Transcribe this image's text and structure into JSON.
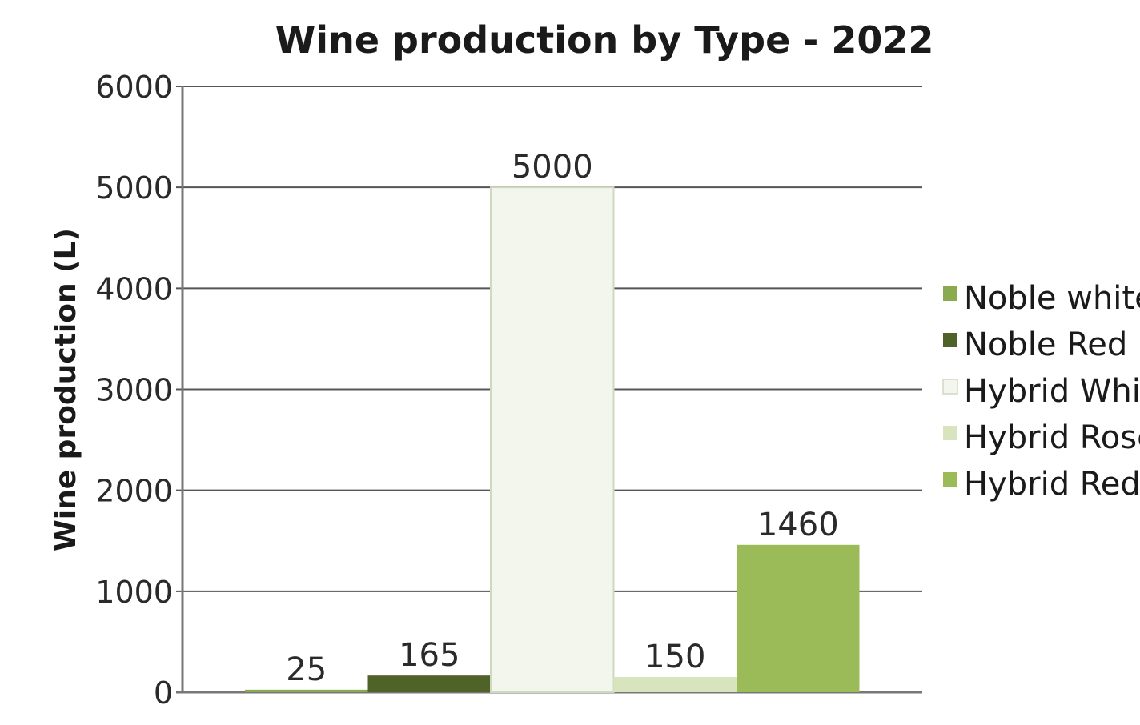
{
  "chart_data": {
    "type": "bar",
    "title": "Wine production by Type - 2022",
    "xlabel": "",
    "ylabel": "Wine production (L)",
    "ylim": [
      0,
      6000
    ],
    "yticks": [
      0,
      1000,
      2000,
      3000,
      4000,
      5000,
      6000
    ],
    "grid": true,
    "legend_position": "right",
    "categories": [
      "Noble white",
      "Noble Red",
      "Hybrid White",
      "Hybrid Rosé",
      "Hybrid Red"
    ],
    "values": [
      25,
      165,
      5000,
      150,
      1460
    ],
    "colors": [
      "#8aaa4e",
      "#4f6228",
      "#f3f6ed",
      "#d7e4bd",
      "#9bbb59"
    ],
    "legend_labels": [
      "Noble white",
      "Noble Red",
      "Hybrid White",
      "Hybrid Rosé",
      "Hybrid Red"
    ]
  }
}
